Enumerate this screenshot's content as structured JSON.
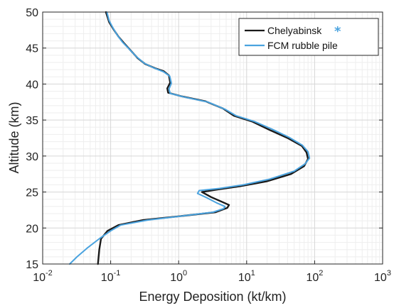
{
  "chart_data": {
    "type": "line",
    "title": "",
    "xlabel": "Energy Deposition (kt/km)",
    "ylabel": "Altitude (km)",
    "x_scale": "log",
    "xlim": [
      0.01,
      1000
    ],
    "ylim": [
      15,
      50
    ],
    "x_ticks": [
      {
        "value": 0.01,
        "base": "10",
        "exp": "-2"
      },
      {
        "value": 0.1,
        "base": "10",
        "exp": "-1"
      },
      {
        "value": 1,
        "base": "10",
        "exp": "0"
      },
      {
        "value": 10,
        "base": "10",
        "exp": "1"
      },
      {
        "value": 100,
        "base": "10",
        "exp": "2"
      },
      {
        "value": 1000,
        "base": "10",
        "exp": "3"
      }
    ],
    "y_ticks": [
      "15",
      "20",
      "25",
      "30",
      "35",
      "40",
      "45",
      "50"
    ],
    "grid": true,
    "legend_position": "top-right",
    "legend_marker": "*",
    "legend_marker_color": "#4AA3DF",
    "series": [
      {
        "name": "Chelyabinsk",
        "color": "#1a1a1a",
        "points": [
          [
            0.065,
            15
          ],
          [
            0.068,
            17
          ],
          [
            0.072,
            18.5
          ],
          [
            0.09,
            19.6
          ],
          [
            0.13,
            20.4
          ],
          [
            0.3,
            21.1
          ],
          [
            1.2,
            21.7
          ],
          [
            3.5,
            22.2
          ],
          [
            5.2,
            22.8
          ],
          [
            5.5,
            23.2
          ],
          [
            4.2,
            23.7
          ],
          [
            3.0,
            24.3
          ],
          [
            2.2,
            25.0
          ],
          [
            3.5,
            25.3
          ],
          [
            8,
            25.8
          ],
          [
            20,
            26.5
          ],
          [
            45,
            27.5
          ],
          [
            70,
            28.6
          ],
          [
            80,
            29.6
          ],
          [
            76,
            30.5
          ],
          [
            65,
            31.4
          ],
          [
            40,
            32.5
          ],
          [
            22,
            33.6
          ],
          [
            12,
            34.8
          ],
          [
            6.5,
            35.6
          ],
          [
            4.5,
            36.6
          ],
          [
            2.5,
            37.6
          ],
          [
            1.1,
            38.3
          ],
          [
            0.7,
            38.8
          ],
          [
            0.68,
            39.4
          ],
          [
            0.75,
            40.2
          ],
          [
            0.72,
            41.2
          ],
          [
            0.6,
            41.8
          ],
          [
            0.45,
            42.2
          ],
          [
            0.32,
            42.8
          ],
          [
            0.25,
            43.6
          ],
          [
            0.2,
            44.6
          ],
          [
            0.16,
            45.6
          ],
          [
            0.13,
            46.6
          ],
          [
            0.11,
            47.6
          ],
          [
            0.095,
            48.6
          ],
          [
            0.085,
            50
          ]
        ]
      },
      {
        "name": "FCM rubble pile",
        "color": "#4AA3DF",
        "points": [
          [
            0.025,
            15
          ],
          [
            0.032,
            16
          ],
          [
            0.045,
            17.2
          ],
          [
            0.07,
            18.6
          ],
          [
            0.1,
            19.6
          ],
          [
            0.14,
            20.4
          ],
          [
            0.35,
            21.1
          ],
          [
            1.2,
            21.7
          ],
          [
            3.2,
            22.2
          ],
          [
            4.6,
            22.7
          ],
          [
            4.8,
            23.0
          ],
          [
            3.6,
            23.5
          ],
          [
            2.6,
            24.2
          ],
          [
            1.9,
            24.8
          ],
          [
            2.0,
            25.2
          ],
          [
            4.0,
            25.5
          ],
          [
            9,
            26.0
          ],
          [
            22,
            26.8
          ],
          [
            50,
            27.9
          ],
          [
            72,
            28.9
          ],
          [
            84,
            29.7
          ],
          [
            80,
            30.6
          ],
          [
            66,
            31.5
          ],
          [
            42,
            32.6
          ],
          [
            24,
            33.7
          ],
          [
            13,
            34.8
          ],
          [
            7,
            35.6
          ],
          [
            4.8,
            36.5
          ],
          [
            2.7,
            37.5
          ],
          [
            1.2,
            38.2
          ],
          [
            0.75,
            38.7
          ],
          [
            0.72,
            39.3
          ],
          [
            0.78,
            40.1
          ],
          [
            0.74,
            41.1
          ],
          [
            0.6,
            41.7
          ],
          [
            0.44,
            42.2
          ],
          [
            0.31,
            42.9
          ],
          [
            0.24,
            43.8
          ],
          [
            0.19,
            44.8
          ],
          [
            0.15,
            45.8
          ],
          [
            0.125,
            46.8
          ],
          [
            0.108,
            47.8
          ],
          [
            0.095,
            48.8
          ],
          [
            0.088,
            50
          ]
        ]
      }
    ]
  }
}
